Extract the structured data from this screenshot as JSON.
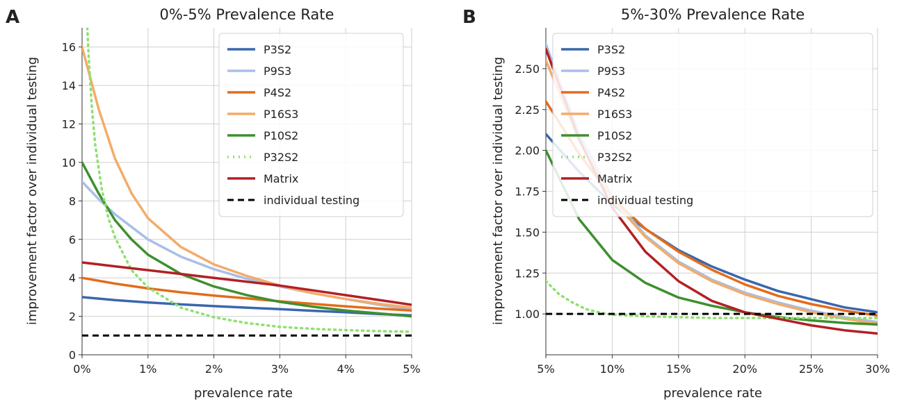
{
  "chart_data": [
    {
      "type": "line",
      "panel": "A",
      "title": "0%-5% Prevalence Rate",
      "xlabel": "prevalence rate",
      "ylabel": "improvement factor over individual testing",
      "xlim": [
        0,
        5
      ],
      "ylim": [
        0,
        17
      ],
      "xticks": [
        0,
        1,
        2,
        3,
        4,
        5
      ],
      "xtick_labels": [
        "0%",
        "1%",
        "2%",
        "3%",
        "4%",
        "5%"
      ],
      "yticks": [
        0,
        2,
        4,
        6,
        8,
        10,
        12,
        14,
        16
      ],
      "ytick_labels": [
        "0",
        "2",
        "4",
        "6",
        "8",
        "10",
        "12",
        "14",
        "16"
      ],
      "grid": true,
      "legend_position": "top-right",
      "series": [
        {
          "name": "P3S2",
          "color": "#3a67ad",
          "dash": "solid",
          "x": [
            0,
            0.5,
            1,
            1.5,
            2,
            2.5,
            3,
            3.5,
            4,
            4.5,
            5
          ],
          "y": [
            3.0,
            2.84,
            2.72,
            2.62,
            2.53,
            2.45,
            2.37,
            2.29,
            2.21,
            2.12,
            2.05
          ]
        },
        {
          "name": "P9S3",
          "color": "#a9bfe6",
          "dash": "solid",
          "x": [
            0,
            0.25,
            0.5,
            1,
            1.5,
            2,
            2.5,
            3,
            3.5,
            4,
            4.5,
            5
          ],
          "y": [
            9.0,
            8.1,
            7.3,
            6.0,
            5.1,
            4.45,
            3.95,
            3.55,
            3.2,
            2.9,
            2.6,
            2.35
          ]
        },
        {
          "name": "P4S2",
          "color": "#e36c1a",
          "dash": "solid",
          "x": [
            0,
            0.5,
            1,
            1.5,
            2,
            2.5,
            3,
            3.5,
            4,
            4.5,
            5
          ],
          "y": [
            4.0,
            3.7,
            3.45,
            3.25,
            3.08,
            2.93,
            2.78,
            2.65,
            2.52,
            2.4,
            2.3
          ]
        },
        {
          "name": "P16S3",
          "color": "#f3ac69",
          "dash": "solid",
          "x": [
            0,
            0.25,
            0.5,
            0.75,
            1,
            1.5,
            2,
            2.5,
            3,
            3.5,
            4,
            4.5,
            5
          ],
          "y": [
            16.0,
            12.8,
            10.2,
            8.4,
            7.1,
            5.6,
            4.7,
            4.1,
            3.6,
            3.2,
            2.9,
            2.65,
            2.45
          ]
        },
        {
          "name": "P10S2",
          "color": "#3e8f2f",
          "dash": "solid",
          "x": [
            0,
            0.25,
            0.5,
            0.75,
            1,
            1.5,
            2,
            2.5,
            3,
            3.5,
            4,
            4.5,
            5
          ],
          "y": [
            10.0,
            8.4,
            7.0,
            6.0,
            5.2,
            4.2,
            3.55,
            3.1,
            2.75,
            2.5,
            2.3,
            2.15,
            2.0
          ]
        },
        {
          "name": "P32S2",
          "color": "#8ee06f",
          "dash": "dotted",
          "x": [
            0.08,
            0.1,
            0.15,
            0.2,
            0.3,
            0.4,
            0.5,
            0.75,
            1,
            1.5,
            2,
            2.5,
            3,
            3.5,
            4,
            4.5,
            5
          ],
          "y": [
            17.0,
            15.5,
            12.8,
            10.9,
            8.6,
            7.1,
            6.1,
            4.4,
            3.5,
            2.45,
            1.95,
            1.65,
            1.45,
            1.35,
            1.28,
            1.23,
            1.2
          ]
        },
        {
          "name": "Matrix",
          "color": "#b22024",
          "dash": "solid",
          "x": [
            0,
            0.5,
            1,
            1.5,
            2,
            2.5,
            3,
            3.5,
            4,
            4.5,
            5
          ],
          "y": [
            4.8,
            4.6,
            4.4,
            4.2,
            4.0,
            3.8,
            3.6,
            3.35,
            3.1,
            2.85,
            2.6
          ]
        },
        {
          "name": "individual testing",
          "color": "#000000",
          "dash": "dashed",
          "x": [
            0,
            5
          ],
          "y": [
            1.0,
            1.0
          ]
        }
      ]
    },
    {
      "type": "line",
      "panel": "B",
      "title": "5%-30% Prevalence Rate",
      "xlabel": "prevalence rate",
      "ylabel": "improvement factor over individual testing",
      "xlim": [
        5,
        30
      ],
      "ylim": [
        0.75,
        2.75
      ],
      "xticks": [
        5,
        10,
        15,
        20,
        25,
        30
      ],
      "xtick_labels": [
        "5%",
        "10%",
        "15%",
        "20%",
        "25%",
        "30%"
      ],
      "yticks": [
        1.0,
        1.25,
        1.5,
        1.75,
        2.0,
        2.25,
        2.5
      ],
      "ytick_labels": [
        "1.00",
        "1.25",
        "1.50",
        "1.75",
        "2.00",
        "2.25",
        "2.50"
      ],
      "grid": true,
      "legend_position": "top-right",
      "series": [
        {
          "name": "P3S2",
          "color": "#3a67ad",
          "dash": "solid",
          "x": [
            5,
            7.5,
            10,
            12.5,
            15,
            17.5,
            20,
            22.5,
            25,
            27.5,
            30
          ],
          "y": [
            2.1,
            1.87,
            1.67,
            1.52,
            1.39,
            1.29,
            1.21,
            1.14,
            1.09,
            1.04,
            1.01
          ]
        },
        {
          "name": "P9S3",
          "color": "#a9bfe6",
          "dash": "solid",
          "x": [
            5,
            7.5,
            10,
            12.5,
            15,
            17.5,
            20,
            22.5,
            25,
            27.5,
            30
          ],
          "y": [
            2.65,
            2.1,
            1.72,
            1.48,
            1.32,
            1.21,
            1.13,
            1.07,
            1.02,
            0.98,
            0.95
          ]
        },
        {
          "name": "P4S2",
          "color": "#e36c1a",
          "dash": "solid",
          "x": [
            5,
            7.5,
            10,
            12.5,
            15,
            17.5,
            20,
            22.5,
            25,
            27.5,
            30
          ],
          "y": [
            2.3,
            1.98,
            1.71,
            1.52,
            1.38,
            1.27,
            1.18,
            1.11,
            1.06,
            1.02,
            0.99
          ]
        },
        {
          "name": "P16S3",
          "color": "#f3ac69",
          "dash": "solid",
          "x": [
            5,
            7.5,
            10,
            12.5,
            15,
            17.5,
            20,
            22.5,
            25,
            27.5,
            30
          ],
          "y": [
            2.55,
            2.06,
            1.7,
            1.47,
            1.31,
            1.2,
            1.12,
            1.06,
            1.01,
            0.97,
            0.94
          ]
        },
        {
          "name": "P10S2",
          "color": "#3e8f2f",
          "dash": "solid",
          "x": [
            5,
            7.5,
            10,
            12.5,
            15,
            17.5,
            20,
            22.5,
            25,
            27.5,
            30
          ],
          "y": [
            2.0,
            1.58,
            1.33,
            1.19,
            1.1,
            1.05,
            1.01,
            0.98,
            0.96,
            0.945,
            0.935
          ]
        },
        {
          "name": "P32S2",
          "color": "#8ee06f",
          "dash": "dotted",
          "x": [
            5,
            6,
            7,
            8,
            9,
            10,
            12.5,
            15,
            17.5,
            20,
            22.5,
            25,
            27.5,
            30
          ],
          "y": [
            1.2,
            1.12,
            1.07,
            1.03,
            1.01,
            0.995,
            0.985,
            0.98,
            0.975,
            0.975,
            0.975,
            0.975,
            0.975,
            0.975
          ]
        },
        {
          "name": "Matrix",
          "color": "#b22024",
          "dash": "solid",
          "x": [
            5,
            7.5,
            10,
            12.5,
            15,
            17.5,
            20,
            22.5,
            25,
            27.5,
            30
          ],
          "y": [
            2.62,
            2.07,
            1.65,
            1.38,
            1.2,
            1.08,
            1.01,
            0.97,
            0.93,
            0.9,
            0.88
          ]
        },
        {
          "name": "individual testing",
          "color": "#000000",
          "dash": "dashed",
          "x": [
            5,
            30
          ],
          "y": [
            1.0,
            1.0
          ]
        }
      ]
    }
  ]
}
